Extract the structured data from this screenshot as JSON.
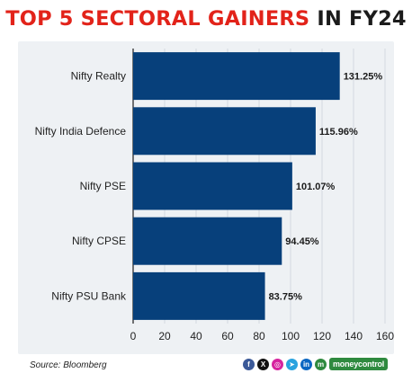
{
  "title": {
    "part1": "TOP 5 SECTORAL GAINERS",
    "part2": " IN FY24"
  },
  "footer": {
    "source": "Source: Bloomberg",
    "brand": "moneycontrol"
  },
  "social_icons": [
    {
      "name": "facebook-icon",
      "glyph": "f",
      "color": "#3b5998"
    },
    {
      "name": "x-icon",
      "glyph": "X",
      "color": "#111111"
    },
    {
      "name": "instagram-icon",
      "glyph": "◎",
      "color": "#d6249f"
    },
    {
      "name": "telegram-icon",
      "glyph": "➤",
      "color": "#2aa3df"
    },
    {
      "name": "linkedin-icon",
      "glyph": "in",
      "color": "#0a66c2"
    },
    {
      "name": "moneycontrol-icon",
      "glyph": "m",
      "color": "#2f8a3f"
    }
  ],
  "chart_data": {
    "type": "bar",
    "orientation": "horizontal",
    "categories": [
      "Nifty Realty",
      "Nifty India Defence",
      "Nifty PSE",
      "Nifty CPSE",
      "Nifty PSU Bank"
    ],
    "values": [
      131.25,
      115.96,
      101.07,
      94.45,
      83.75
    ],
    "value_labels": [
      "131.25%",
      "115.96%",
      "101.07%",
      "94.45%",
      "83.75%"
    ],
    "xticks": [
      "0",
      "20",
      "40",
      "60",
      "80",
      "100",
      "120",
      "140",
      "160"
    ],
    "xlim": [
      0,
      160
    ],
    "bar_color": "#07407b",
    "grid": true
  }
}
